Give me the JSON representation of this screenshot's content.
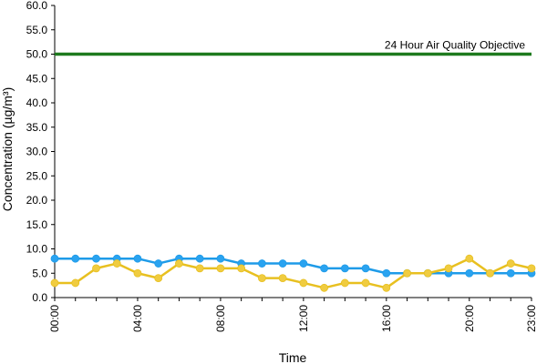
{
  "chart_data": {
    "type": "line",
    "title": "",
    "xlabel": "Time",
    "ylabel": "Concentration (µg/m³)",
    "ylim": [
      0,
      60
    ],
    "y_ticks": [
      0,
      5,
      10,
      15,
      20,
      25,
      30,
      35,
      40,
      45,
      50,
      55,
      60
    ],
    "y_tick_labels": [
      "0.0",
      "5.0",
      "10.0",
      "15.0",
      "20.0",
      "25.0",
      "30.0",
      "35.0",
      "40.0",
      "45.0",
      "50.0",
      "55.0",
      "60.0"
    ],
    "x_tick_labels": [
      "00:00",
      "04:00",
      "08:00",
      "12:00",
      "16:00",
      "20:00",
      "23:00"
    ],
    "x_tick_hours": [
      0,
      4,
      8,
      12,
      16,
      20,
      23
    ],
    "x": [
      0,
      1,
      2,
      3,
      4,
      5,
      6,
      7,
      8,
      9,
      10,
      11,
      12,
      13,
      14,
      15,
      16,
      17,
      18,
      19,
      20,
      21,
      22,
      23
    ],
    "grid": false,
    "legend": "none",
    "series": [
      {
        "color": "#1E9BE8",
        "marker_color": "#2AA3F0",
        "values": [
          8,
          8,
          8,
          8,
          8,
          7,
          8,
          8,
          8,
          7,
          7,
          7,
          7,
          6,
          6,
          6,
          5,
          5,
          5,
          5,
          5,
          5,
          5,
          5
        ]
      },
      {
        "color": "#E8C020",
        "marker_color": "#F0CC40",
        "values": [
          3,
          3,
          6,
          7,
          5,
          4,
          7,
          6,
          6,
          6,
          4,
          4,
          3,
          2,
          3,
          3,
          2,
          5,
          5,
          6,
          8,
          5,
          7,
          6
        ]
      }
    ],
    "reference_line": {
      "label": "24 Hour Air Quality Objective",
      "value": 50,
      "color": "#1E7A1E"
    }
  }
}
